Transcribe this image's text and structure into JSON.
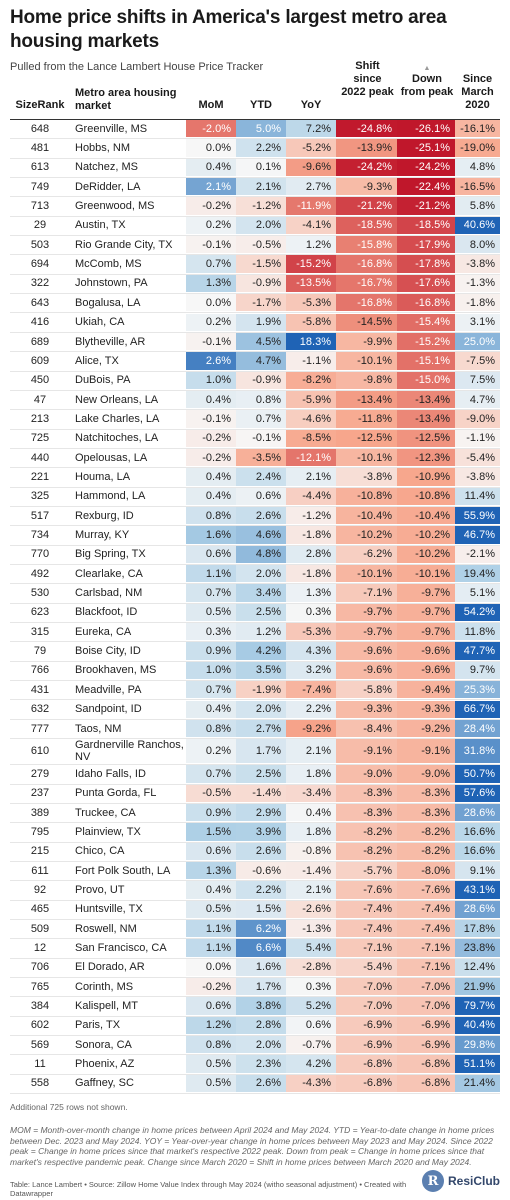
{
  "header": {
    "title": "Home price shifts in America's largest metro area housing markets",
    "subtitle": "Pulled from the Lance Lambert House Price Tracker"
  },
  "columns": {
    "rank": "SizeRank",
    "market": "Metro area housing market",
    "mom": "MoM",
    "ytd": "YTD",
    "yoy": "YoY",
    "shift": "Shift since 2022 peak",
    "down": "Down from peak",
    "since": "Since March 2020",
    "sort_indicator": "▲"
  },
  "chart_data": {
    "type": "table",
    "columns": [
      "SizeRank",
      "Metro area housing market",
      "MoM",
      "YTD",
      "YoY",
      "Shift since 2022 peak",
      "Down from peak",
      "Since March 2020"
    ],
    "rows": [
      [
        648,
        "Greenville, MS",
        "-2.0%",
        "5.0%",
        "7.2%",
        "-24.8%",
        "-26.1%",
        "-16.1%"
      ],
      [
        481,
        "Hobbs, NM",
        "0.0%",
        "2.2%",
        "-5.2%",
        "-13.9%",
        "-25.1%",
        "-19.0%"
      ],
      [
        613,
        "Natchez, MS",
        "0.4%",
        "0.1%",
        "-9.6%",
        "-24.2%",
        "-24.2%",
        "4.8%"
      ],
      [
        749,
        "DeRidder, LA",
        "2.1%",
        "2.1%",
        "2.7%",
        "-9.3%",
        "-22.4%",
        "-16.5%"
      ],
      [
        713,
        "Greenwood, MS",
        "-0.2%",
        "-1.2%",
        "-11.9%",
        "-21.2%",
        "-21.2%",
        "5.8%"
      ],
      [
        29,
        "Austin, TX",
        "0.2%",
        "2.0%",
        "-4.1%",
        "-18.5%",
        "-18.5%",
        "40.6%"
      ],
      [
        503,
        "Rio Grande City, TX",
        "-0.1%",
        "-0.5%",
        "1.2%",
        "-15.8%",
        "-17.9%",
        "8.0%"
      ],
      [
        694,
        "McComb, MS",
        "0.7%",
        "-1.5%",
        "-15.2%",
        "-16.8%",
        "-17.8%",
        "-3.8%"
      ],
      [
        322,
        "Johnstown, PA",
        "1.3%",
        "-0.9%",
        "-13.5%",
        "-16.7%",
        "-17.6%",
        "-1.3%"
      ],
      [
        643,
        "Bogalusa, LA",
        "0.0%",
        "-1.7%",
        "-5.3%",
        "-16.8%",
        "-16.8%",
        "-1.8%"
      ],
      [
        416,
        "Ukiah, CA",
        "0.2%",
        "1.9%",
        "-5.8%",
        "-14.5%",
        "-15.4%",
        "3.1%"
      ],
      [
        689,
        "Blytheville, AR",
        "-0.1%",
        "4.5%",
        "18.3%",
        "-9.9%",
        "-15.2%",
        "25.0%"
      ],
      [
        609,
        "Alice, TX",
        "2.6%",
        "4.7%",
        "-1.1%",
        "-10.1%",
        "-15.1%",
        "-7.5%"
      ],
      [
        450,
        "DuBois, PA",
        "1.0%",
        "-0.9%",
        "-8.2%",
        "-9.8%",
        "-15.0%",
        "7.5%"
      ],
      [
        47,
        "New Orleans, LA",
        "0.4%",
        "0.8%",
        "-5.9%",
        "-13.4%",
        "-13.4%",
        "4.7%"
      ],
      [
        213,
        "Lake Charles, LA",
        "-0.1%",
        "0.7%",
        "-4.6%",
        "-11.8%",
        "-13.4%",
        "-9.0%"
      ],
      [
        725,
        "Natchitoches, LA",
        "-0.2%",
        "-0.1%",
        "-8.5%",
        "-12.5%",
        "-12.5%",
        "-1.1%"
      ],
      [
        440,
        "Opelousas, LA",
        "-0.2%",
        "-3.5%",
        "-12.1%",
        "-10.1%",
        "-12.3%",
        "-5.4%"
      ],
      [
        221,
        "Houma, LA",
        "0.4%",
        "2.4%",
        "2.1%",
        "-3.8%",
        "-10.9%",
        "-3.8%"
      ],
      [
        325,
        "Hammond, LA",
        "0.4%",
        "0.6%",
        "-4.4%",
        "-10.8%",
        "-10.8%",
        "11.4%"
      ],
      [
        517,
        "Rexburg, ID",
        "0.8%",
        "2.6%",
        "-1.2%",
        "-10.4%",
        "-10.4%",
        "55.9%"
      ],
      [
        734,
        "Murray, KY",
        "1.6%",
        "4.6%",
        "-1.8%",
        "-10.2%",
        "-10.2%",
        "46.7%"
      ],
      [
        770,
        "Big Spring, TX",
        "0.6%",
        "4.8%",
        "2.8%",
        "-6.2%",
        "-10.2%",
        "-2.1%"
      ],
      [
        492,
        "Clearlake, CA",
        "1.1%",
        "2.0%",
        "-1.8%",
        "-10.1%",
        "-10.1%",
        "19.4%"
      ],
      [
        530,
        "Carlsbad, NM",
        "0.7%",
        "3.4%",
        "1.3%",
        "-7.1%",
        "-9.7%",
        "5.1%"
      ],
      [
        623,
        "Blackfoot, ID",
        "0.5%",
        "2.5%",
        "0.3%",
        "-9.7%",
        "-9.7%",
        "54.2%"
      ],
      [
        315,
        "Eureka, CA",
        "0.3%",
        "1.2%",
        "-5.3%",
        "-9.7%",
        "-9.7%",
        "11.8%"
      ],
      [
        79,
        "Boise City, ID",
        "0.9%",
        "4.2%",
        "4.3%",
        "-9.6%",
        "-9.6%",
        "47.7%"
      ],
      [
        766,
        "Brookhaven, MS",
        "1.0%",
        "3.5%",
        "3.2%",
        "-9.6%",
        "-9.6%",
        "9.7%"
      ],
      [
        431,
        "Meadville, PA",
        "0.7%",
        "-1.9%",
        "-7.4%",
        "-5.8%",
        "-9.4%",
        "25.3%"
      ],
      [
        632,
        "Sandpoint, ID",
        "0.4%",
        "2.0%",
        "2.2%",
        "-9.3%",
        "-9.3%",
        "66.7%"
      ],
      [
        777,
        "Taos, NM",
        "0.8%",
        "2.7%",
        "-9.2%",
        "-8.4%",
        "-9.2%",
        "28.4%"
      ],
      [
        610,
        "Gardnerville Ranchos, NV",
        "0.2%",
        "1.7%",
        "2.1%",
        "-9.1%",
        "-9.1%",
        "31.8%"
      ],
      [
        279,
        "Idaho Falls, ID",
        "0.7%",
        "2.5%",
        "1.8%",
        "-9.0%",
        "-9.0%",
        "50.7%"
      ],
      [
        237,
        "Punta Gorda, FL",
        "-0.5%",
        "-1.4%",
        "-3.4%",
        "-8.3%",
        "-8.3%",
        "57.6%"
      ],
      [
        389,
        "Truckee, CA",
        "0.9%",
        "2.9%",
        "0.4%",
        "-8.3%",
        "-8.3%",
        "28.6%"
      ],
      [
        795,
        "Plainview, TX",
        "1.5%",
        "3.9%",
        "1.8%",
        "-8.2%",
        "-8.2%",
        "16.6%"
      ],
      [
        215,
        "Chico, CA",
        "0.6%",
        "2.6%",
        "-0.8%",
        "-8.2%",
        "-8.2%",
        "16.6%"
      ],
      [
        611,
        "Fort Polk South, LA",
        "1.3%",
        "-0.6%",
        "-1.4%",
        "-5.7%",
        "-8.0%",
        "9.1%"
      ],
      [
        92,
        "Provo, UT",
        "0.4%",
        "2.2%",
        "2.1%",
        "-7.6%",
        "-7.6%",
        "43.1%"
      ],
      [
        465,
        "Huntsville, TX",
        "0.5%",
        "1.5%",
        "-2.6%",
        "-7.4%",
        "-7.4%",
        "28.6%"
      ],
      [
        509,
        "Roswell, NM",
        "1.1%",
        "6.2%",
        "-1.3%",
        "-7.4%",
        "-7.4%",
        "17.8%"
      ],
      [
        12,
        "San Francisco, CA",
        "1.1%",
        "6.6%",
        "5.4%",
        "-7.1%",
        "-7.1%",
        "23.8%"
      ],
      [
        706,
        "El Dorado, AR",
        "0.0%",
        "1.6%",
        "-2.8%",
        "-5.4%",
        "-7.1%",
        "12.4%"
      ],
      [
        765,
        "Corinth, MS",
        "-0.2%",
        "1.7%",
        "0.3%",
        "-7.0%",
        "-7.0%",
        "21.9%"
      ],
      [
        384,
        "Kalispell, MT",
        "0.6%",
        "3.8%",
        "5.2%",
        "-7.0%",
        "-7.0%",
        "79.7%"
      ],
      [
        602,
        "Paris, TX",
        "1.2%",
        "2.8%",
        "0.6%",
        "-6.9%",
        "-6.9%",
        "40.4%"
      ],
      [
        569,
        "Sonora, CA",
        "0.8%",
        "2.0%",
        "-0.7%",
        "-6.9%",
        "-6.9%",
        "29.8%"
      ],
      [
        11,
        "Phoenix, AZ",
        "0.5%",
        "2.3%",
        "4.2%",
        "-6.8%",
        "-6.8%",
        "51.1%"
      ],
      [
        558,
        "Gaffney, SC",
        "0.5%",
        "2.6%",
        "-4.3%",
        "-6.8%",
        "-6.8%",
        "21.4%"
      ]
    ]
  },
  "notes": {
    "hidden_rows": "Additional 725 rows not shown.",
    "definitions": "MOM = Month-over-month change in home prices between April 2024 and May 2024. YTD = Year-to-date change in home prices between Dec. 2023 and May 2024. YOY = Year-over-year change in home prices between May 2023 and May 2024. Since 2022 peak = Change in home prices since that market's respective 2022 peak. Down from peak = Change in home prices since that market's respective pandemic peak. Change since March 2020 = Shift in home prices between March 2020 and May 2024.",
    "credit": "Table: Lance Lambert • Source: Zillow Home Value Index through May 2024 (witho seasonal adjustment) • Created with Datawrapper"
  },
  "logo": {
    "mark": "R",
    "name": "ResiClub"
  },
  "colors": {
    "deep_red": "#c0172b",
    "light_red": "#f7a68c",
    "neutral": "#f7f7f7",
    "light_blue": "#aed0e6",
    "deep_blue": "#1f63b5"
  }
}
